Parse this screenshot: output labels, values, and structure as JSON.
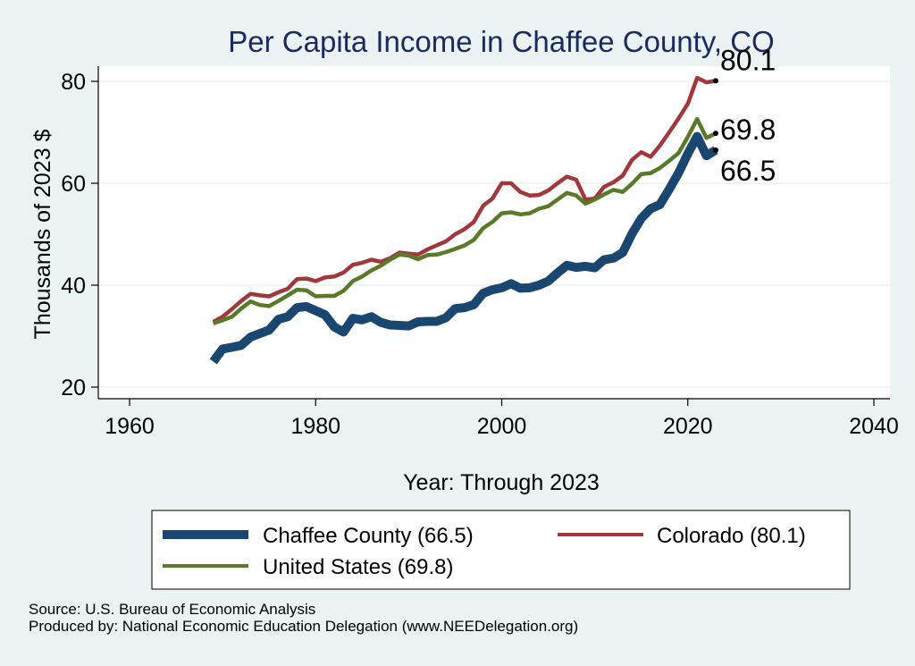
{
  "chart_data": {
    "type": "line",
    "title": "Per Capita Income in Chaffee County, CO",
    "xlabel": "Year: Through 2023",
    "ylabel": "Thousands of 2023 $",
    "xlim": [
      1960,
      2040
    ],
    "ylim": [
      20,
      80
    ],
    "xticks": [
      1960,
      1980,
      2000,
      2020,
      2040
    ],
    "yticks": [
      20,
      40,
      60,
      80
    ],
    "grid": true,
    "x": [
      1969,
      1970,
      1971,
      1972,
      1973,
      1974,
      1975,
      1976,
      1977,
      1978,
      1979,
      1980,
      1981,
      1982,
      1983,
      1984,
      1985,
      1986,
      1987,
      1988,
      1989,
      1990,
      1991,
      1992,
      1993,
      1994,
      1995,
      1996,
      1997,
      1998,
      1999,
      2000,
      2001,
      2002,
      2003,
      2004,
      2005,
      2006,
      2007,
      2008,
      2009,
      2010,
      2011,
      2012,
      2013,
      2014,
      2015,
      2016,
      2017,
      2018,
      2019,
      2020,
      2021,
      2022,
      2023
    ],
    "series": [
      {
        "name": "Chaffee County",
        "legend": "Chaffee County (66.5)",
        "color": "#1a476f",
        "end_label": "66.5",
        "values": [
          25.0,
          27.5,
          27.8,
          28.2,
          29.8,
          30.5,
          31.2,
          33.3,
          33.8,
          35.6,
          35.8,
          35.0,
          34.2,
          31.8,
          30.8,
          33.5,
          33.2,
          33.8,
          32.7,
          32.2,
          32.1,
          32.0,
          32.8,
          32.9,
          32.9,
          33.6,
          35.4,
          35.6,
          36.2,
          38.4,
          39.1,
          39.5,
          40.3,
          39.4,
          39.5,
          40.0,
          40.8,
          42.4,
          43.9,
          43.5,
          43.7,
          43.4,
          45.0,
          45.3,
          46.4,
          50.1,
          53.1,
          55.0,
          55.8,
          58.8,
          62.0,
          65.8,
          69.2,
          65.4,
          66.5
        ]
      },
      {
        "name": "Colorado",
        "legend": "Colorado (80.1)",
        "color": "#a0383c",
        "end_label": "80.1",
        "values": [
          32.8,
          33.8,
          35.3,
          36.9,
          38.3,
          38.0,
          37.8,
          38.6,
          39.3,
          41.2,
          41.3,
          40.8,
          41.5,
          41.7,
          42.5,
          44.0,
          44.4,
          45.0,
          44.6,
          45.3,
          46.4,
          46.2,
          46.0,
          47.0,
          47.8,
          48.6,
          50.0,
          51.0,
          52.4,
          55.6,
          57.0,
          60.0,
          60.0,
          58.3,
          57.6,
          57.7,
          58.6,
          60.0,
          61.3,
          60.7,
          56.8,
          57.0,
          59.3,
          60.2,
          61.5,
          64.6,
          66.1,
          65.2,
          67.4,
          70.0,
          72.7,
          75.6,
          80.7,
          79.8,
          80.1
        ]
      },
      {
        "name": "United States",
        "legend": "United States (69.8)",
        "color": "#5a7a2a",
        "end_label": "69.8",
        "values": [
          32.5,
          33.1,
          33.8,
          35.4,
          36.8,
          36.1,
          35.9,
          36.9,
          38.0,
          39.1,
          39.0,
          37.8,
          37.9,
          37.9,
          38.9,
          40.8,
          41.7,
          42.9,
          43.8,
          45.0,
          46.0,
          45.8,
          45.1,
          45.9,
          46.0,
          46.5,
          47.1,
          47.8,
          48.9,
          51.2,
          52.4,
          54.1,
          54.3,
          53.9,
          54.1,
          55.0,
          55.5,
          56.8,
          58.1,
          57.6,
          56.0,
          56.8,
          57.8,
          58.7,
          58.3,
          59.9,
          61.8,
          62.0,
          63.0,
          64.4,
          65.9,
          69.1,
          72.6,
          68.9,
          69.8
        ]
      }
    ]
  },
  "notes": {
    "source": "Source: U.S. Bureau of Economic Analysis",
    "produced": "Produced by: National Economic Education Delegation (www.NEEDelegation.org)"
  }
}
